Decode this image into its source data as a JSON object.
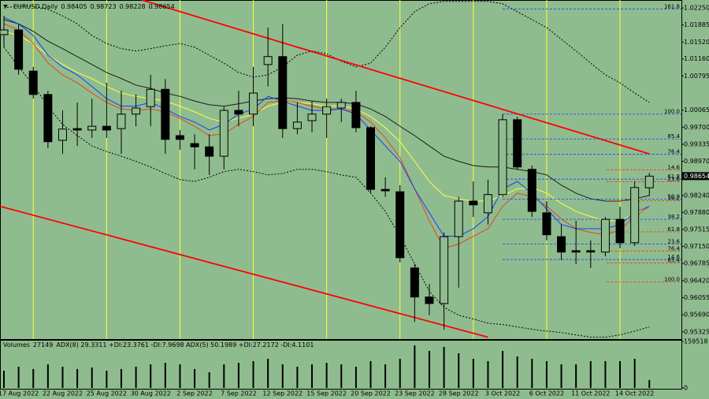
{
  "chart_data": {
    "type": "candlestick",
    "symbol": "EURUSD,Daily",
    "categories": [
      null,
      "17 Aug 2022",
      null,
      null,
      "22 Aug 2022",
      null,
      null,
      "25 Aug 2022",
      null,
      null,
      "30 Aug 2022",
      null,
      null,
      "2 Sep 2022",
      null,
      null,
      "7 Sep 2022",
      null,
      null,
      "12 Sep 2022",
      null,
      null,
      "15 Sep 2022",
      null,
      null,
      "20 Sep 2022",
      null,
      null,
      "23 Sep 2022",
      null,
      null,
      "28 Sep 2022",
      null,
      null,
      "3 Oct 2022",
      null,
      null,
      "6 Oct 2022",
      null,
      null,
      "11 Oct 2022",
      null,
      null,
      "14 Oct 2022",
      null
    ],
    "open": [
      1.0168,
      1.0178,
      1.009,
      1.004,
      0.9942,
      0.9967,
      0.9964,
      0.9972,
      0.9967,
      0.9998,
      1.0014,
      1.0051,
      0.9952,
      0.9935,
      0.9928,
      0.9908,
      1.0006,
      0.9998,
      1.0104,
      1.0121,
      0.9967,
      0.9984,
      0.9998,
      1.0011,
      1.0023,
      0.9969,
      0.9837,
      0.9832,
      0.9669,
      0.9607,
      0.9593,
      0.9736,
      0.9812,
      0.9787,
      0.9826,
      0.9986,
      0.988,
      0.9787,
      0.9736,
      0.9706,
      0.9706,
      0.9703,
      0.9773,
      0.9723,
      0.98405
    ],
    "high": [
      1.0208,
      1.0191,
      1.0099,
      1.0048,
      1.0006,
      1.0023,
      1.0031,
      1.0065,
      1.0048,
      1.004,
      1.0082,
      1.0073,
      0.9964,
      0.9955,
      0.9955,
      1.0014,
      1.0048,
      1.0099,
      1.0183,
      1.0191,
      1.0023,
      1.0026,
      1.0031,
      1.0031,
      1.0048,
      0.9972,
      0.9863,
      0.9846,
      0.9677,
      0.9635,
      0.9745,
      0.9821,
      0.9854,
      0.9858,
      0.9998,
      0.9992,
      0.9888,
      0.9812,
      0.9762,
      0.977,
      0.9728,
      0.9778,
      0.98,
      0.9854,
      0.98723
    ],
    "low": [
      1.0141,
      1.0082,
      1.0031,
      0.9925,
      0.9913,
      0.993,
      0.9947,
      0.9947,
      0.9913,
      0.9972,
      0.9972,
      0.9913,
      0.9922,
      0.988,
      0.9868,
      0.988,
      0.9972,
      0.9972,
      1.0057,
      0.9947,
      0.9955,
      0.9959,
      0.9947,
      0.9981,
      0.9959,
      0.9829,
      0.9821,
      0.9681,
      0.9554,
      0.9568,
      0.9537,
      0.9627,
      0.9778,
      0.9762,
      0.9821,
      0.988,
      0.9778,
      0.9728,
      0.9686,
      0.9677,
      0.9669,
      0.9694,
      0.9711,
      0.9716,
      0.98228
    ],
    "close": [
      1.0178,
      1.0094,
      1.004,
      0.9939,
      0.9966,
      0.9964,
      0.9972,
      0.9964,
      0.9998,
      1.0011,
      1.0051,
      0.9944,
      0.9944,
      0.9928,
      0.9908,
      1.0006,
      0.9998,
      1.0043,
      1.0121,
      0.9967,
      0.9981,
      0.9998,
      1.0014,
      1.0023,
      0.9969,
      0.9837,
      0.9834,
      0.9691,
      0.9607,
      0.9593,
      0.9736,
      0.9812,
      0.9804,
      0.9826,
      0.9986,
      0.9885,
      0.979,
      0.974,
      0.9703,
      0.9703,
      0.9703,
      0.9773,
      0.9723,
      0.9841,
      0.98654
    ],
    "ylim": [
      0.9517,
      1.0242
    ],
    "yticks": [
      {
        "value": 1.0225,
        "label": "1.02250"
      },
      {
        "value": 1.01885,
        "label": "1.01885"
      },
      {
        "value": 1.0152,
        "label": "1.01520"
      },
      {
        "value": 1.0116,
        "label": "1.01160"
      },
      {
        "value": 1.00795,
        "label": "1.00795"
      },
      {
        "value": 1.00065,
        "label": "1.00065"
      },
      {
        "value": 0.997,
        "label": "0.99700"
      },
      {
        "value": 0.99335,
        "label": "0.99335"
      },
      {
        "value": 0.9897,
        "label": "0.98970"
      },
      {
        "value": 0.9824,
        "label": "0.98240"
      },
      {
        "value": 0.9788,
        "label": "0.97880"
      },
      {
        "value": 0.97515,
        "label": "0.97515"
      },
      {
        "value": 0.9715,
        "label": "0.97150"
      },
      {
        "value": 0.96785,
        "label": "0.96785"
      },
      {
        "value": 0.9642,
        "label": "0.96420"
      },
      {
        "value": 0.96055,
        "label": "0.96055"
      },
      {
        "value": 0.9569,
        "label": "0.95690"
      },
      {
        "value": 0.95325,
        "label": "0.95325"
      }
    ],
    "lines": [
      {
        "color": "#000000",
        "dash": true,
        "values": [
          1.0225,
          1.0229,
          1.0229,
          1.0222,
          1.0208,
          1.0191,
          1.0166,
          1.0149,
          1.0138,
          1.0133,
          1.0138,
          1.0144,
          1.0149,
          1.0141,
          1.0124,
          1.0107,
          1.0087,
          1.0077,
          1.0082,
          1.0099,
          1.0124,
          1.0133,
          1.0127,
          1.0111,
          1.0099,
          1.0107,
          1.0141,
          1.0183,
          1.0217,
          1.0234,
          1.0239,
          1.0239,
          1.0239,
          1.0239,
          1.0234,
          1.0217,
          1.02,
          1.0183,
          1.0158,
          1.0133,
          1.0107,
          1.0082,
          1.0065,
          1.0043,
          1.0023
        ]
      },
      {
        "color": "#000000",
        "dash": true,
        "values": [
          1.0141,
          1.0099,
          1.006,
          1.0015,
          0.9976,
          0.9952,
          0.993,
          0.9918,
          0.9908,
          0.9897,
          0.9885,
          0.9871,
          0.9858,
          0.9854,
          0.9863,
          0.9875,
          0.988,
          0.9875,
          0.9868,
          0.9871,
          0.988,
          0.988,
          0.9875,
          0.9868,
          0.9863,
          0.9829,
          0.979,
          0.9737,
          0.9678,
          0.9619,
          0.9585,
          0.9568,
          0.956,
          0.9551,
          0.9548,
          0.9543,
          0.9538,
          0.9534,
          0.9531,
          0.9526,
          0.9521,
          0.9521,
          0.9526,
          0.9534,
          0.9543
        ]
      },
      {
        "color": "#1a1a1a",
        "dash": false,
        "values": [
          1.02,
          1.0191,
          1.0175,
          1.0154,
          1.0138,
          1.0121,
          1.0104,
          1.0087,
          1.0074,
          1.006,
          1.0053,
          1.0043,
          1.0036,
          1.0026,
          1.0018,
          1.0015,
          1.002,
          1.0026,
          1.0031,
          1.0033,
          1.0031,
          1.0026,
          1.0023,
          1.0023,
          1.002,
          1.0009,
          0.9993,
          0.9972,
          0.9952,
          0.993,
          0.9908,
          0.9897,
          0.9888,
          0.9885,
          0.9885,
          0.988,
          0.9875,
          0.9868,
          0.9846,
          0.9829,
          0.9817,
          0.9812,
          0.9812,
          0.9817,
          0.9824
        ]
      },
      {
        "color": "#ffff40",
        "dash": false,
        "values": [
          1.0175,
          1.0166,
          1.0149,
          1.0124,
          1.0104,
          1.0087,
          1.0074,
          1.0057,
          1.0043,
          1.0036,
          1.0031,
          1.0026,
          1.0015,
          1.0003,
          0.9989,
          0.9981,
          0.9989,
          0.9998,
          1.0015,
          1.0023,
          1.0023,
          1.002,
          1.0015,
          1.0015,
          1.0009,
          0.9993,
          0.9969,
          0.9939,
          0.9897,
          0.9854,
          0.9824,
          0.9817,
          0.9812,
          0.9812,
          0.9824,
          0.9838,
          0.9841,
          0.9829,
          0.9807,
          0.979,
          0.9779,
          0.977,
          0.977,
          0.9784,
          0.9801
        ]
      },
      {
        "color": "#e8421c",
        "dash": false,
        "values": [
          1.0191,
          1.0178,
          1.0149,
          1.0107,
          1.0082,
          1.0065,
          1.0043,
          1.0023,
          1.0009,
          1.0006,
          1.0009,
          1.0003,
          0.9989,
          0.9972,
          0.9952,
          0.9956,
          0.9976,
          0.9993,
          1.0023,
          1.0026,
          1.0023,
          1.0015,
          1.0009,
          1.0009,
          1.0003,
          0.9981,
          0.9947,
          0.9905,
          0.9838,
          0.977,
          0.9711,
          0.972,
          0.9737,
          0.9753,
          0.9801,
          0.9829,
          0.9821,
          0.9801,
          0.9774,
          0.9753,
          0.9745,
          0.974,
          0.975,
          0.9779,
          0.9801
        ]
      },
      {
        "color": "#1a3cff",
        "dash": false,
        "values": [
          1.0205,
          1.0191,
          1.0166,
          1.0124,
          1.0099,
          1.0082,
          1.0057,
          1.0031,
          1.0015,
          1.0015,
          1.0023,
          1.0009,
          0.9993,
          0.9981,
          0.9964,
          0.9976,
          0.9998,
          1.0009,
          1.0036,
          1.0026,
          1.0015,
          1.0006,
          1.0006,
          1.0009,
          0.9998,
          0.9964,
          0.993,
          0.9897,
          0.9838,
          0.9787,
          0.9737,
          0.9737,
          0.9753,
          0.9779,
          0.9838,
          0.9854,
          0.9829,
          0.9795,
          0.9762,
          0.9753,
          0.9753,
          0.9753,
          0.9762,
          0.9787,
          0.9801
        ]
      }
    ],
    "trendlines": [
      {
        "color": "#ff0000",
        "x": [
          9.4,
          44.0
        ],
        "y": [
          1.0242,
          0.9913
        ]
      },
      {
        "color": "#ff0000",
        "x": [
          -0.27,
          33.0
        ],
        "y": [
          0.9801,
          0.9521
        ]
      }
    ],
    "fibs": [
      {
        "color": "#1a3cff",
        "zero": 0.9634,
        "hundred": 0.9998,
        "levels": [
          161.8,
          {
            "value": 100,
            "label": "100.0"
          },
          85.4,
          76.4,
          61.8,
          {
            "value": 50,
            "label": "50.0"
          },
          38.2,
          23.6,
          14.6
        ]
      },
      {
        "color": "#ff3300",
        "zero": 0.992,
        "hundred": 0.9639,
        "levels": [
          14.6,
          23.6,
          38.2,
          61.8,
          76.4,
          85.4,
          {
            "value": 100,
            "label": "100.0"
          }
        ]
      }
    ],
    "volume": {
      "label": "Volumes",
      "indicators_text": "ADX(8) 29.3311 +DI:23.3761 -DI:7.9698  ADX(5) 50.1989 +DI:27.2172 -DI:4.1101",
      "ylim": [
        0,
        159518
      ],
      "yticks": [
        0,
        159518
      ],
      "values": [
        59000,
        73000,
        65000,
        81000,
        73000,
        65000,
        70000,
        59000,
        65000,
        73000,
        81000,
        86000,
        81000,
        65000,
        54000,
        81000,
        86000,
        92000,
        100000,
        81000,
        73000,
        81000,
        86000,
        81000,
        73000,
        92000,
        81000,
        100000,
        146000,
        127000,
        141000,
        119000,
        100000,
        92000,
        127000,
        108000,
        100000,
        92000,
        81000,
        81000,
        92000,
        92000,
        92000,
        100000,
        27149
      ]
    }
  }
}
